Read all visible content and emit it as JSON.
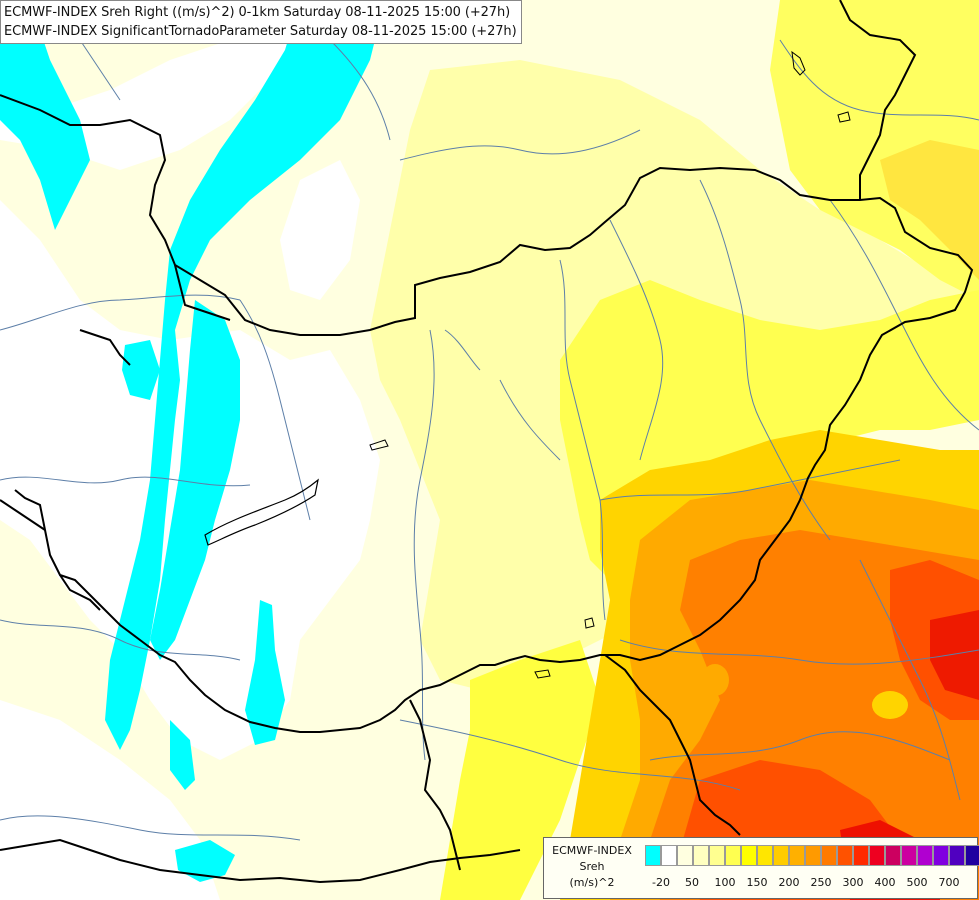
{
  "titles": {
    "line1": "ECMWF-INDEX Sreh Right ((m/s)^2) 0-1km Saturday 08-11-2025 15:00 (+27h)",
    "line2": "ECMWF-INDEX SignificantTornadoParameter Saturday 08-11-2025 15:00 (+27h)"
  },
  "legend": {
    "source": "ECMWF-INDEX",
    "variable": "Sreh",
    "unit": "(m/s)^2",
    "colors": [
      "#00ffff",
      "#ffffff",
      "#ffffe0",
      "#ffffc0",
      "#ffff90",
      "#ffff50",
      "#ffff00",
      "#ffe600",
      "#ffcc00",
      "#ffb000",
      "#ff9a00",
      "#ff7a00",
      "#ff5200",
      "#ff2a00",
      "#ee0020",
      "#cc0060",
      "#cc00a0",
      "#b000d0",
      "#8000e0",
      "#5000c0",
      "#2000a0",
      "#000080"
    ],
    "ticks": [
      "-20",
      "50",
      "100",
      "150",
      "200",
      "250",
      "300",
      "400",
      "500",
      "700"
    ]
  },
  "map_colors": {
    "cyan": "#00ffff",
    "white": "#ffffff",
    "pale_yellow": "#ffffc8",
    "light_yellow": "#ffff9a",
    "yellow": "#ffff40",
    "gold": "#ffd800",
    "orange": "#ffaa00",
    "dark_orange": "#ff7a00",
    "red_orange": "#ff4a00",
    "red": "#ee1000",
    "border": "#000000",
    "river": "#5d7fa8"
  }
}
